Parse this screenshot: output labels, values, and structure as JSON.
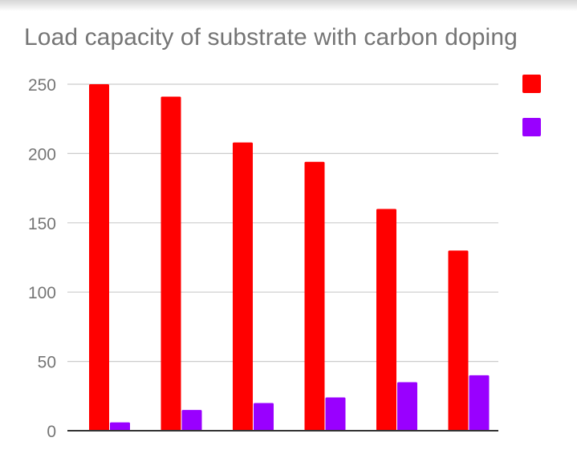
{
  "chart_data": {
    "type": "bar",
    "title": "Load capacity of substrate with carbon doping",
    "xlabel": "",
    "ylabel": "",
    "categories": [
      "",
      "",
      "",
      "",
      "",
      ""
    ],
    "ylim": [
      0,
      250
    ],
    "yticks": [
      0,
      50,
      100,
      150,
      200,
      250
    ],
    "ytick_labels": [
      "0",
      "50",
      "100",
      "150",
      "200",
      "250"
    ],
    "grid": true,
    "legend_position": "top-right",
    "series": [
      {
        "name": "",
        "color": "#ff0000",
        "values": [
          250,
          241,
          208,
          194,
          160,
          130
        ]
      },
      {
        "name": "",
        "color": "#9900ff",
        "values": [
          6,
          15,
          20,
          24,
          35,
          40
        ]
      }
    ]
  }
}
